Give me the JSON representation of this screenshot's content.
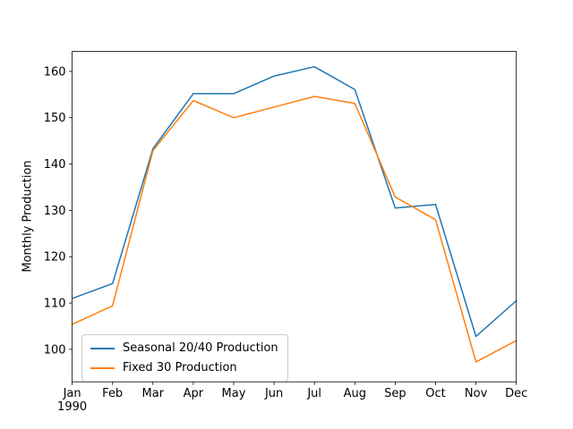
{
  "figure": {
    "background": "#ffffff"
  },
  "chart_data": {
    "type": "line",
    "title": "",
    "xlabel": "",
    "ylabel": "Monthly Production",
    "x_tick_labels": [
      "Jan",
      "Feb",
      "Mar",
      "Apr",
      "May",
      "Jun",
      "Jul",
      "Aug",
      "Sep",
      "Oct",
      "Nov",
      "Dec"
    ],
    "x_secondary_label": "1990",
    "y_ticks": [
      100,
      110,
      120,
      130,
      140,
      150,
      160
    ],
    "ylim": [
      93.0,
      164.3
    ],
    "grid": false,
    "legend_position": "lower left",
    "axis_color": "#000000",
    "series": [
      {
        "name": "Seasonal 20/40 Production",
        "color": "#1f77b4",
        "values": [
          111.0,
          114.2,
          143.3,
          155.2,
          155.2,
          159.0,
          161.0,
          156.1,
          130.5,
          131.3,
          102.8,
          110.5
        ]
      },
      {
        "name": "Fixed 30 Production",
        "color": "#ff7f0e",
        "values": [
          105.4,
          109.4,
          142.9,
          153.7,
          150.0,
          152.3,
          154.6,
          153.1,
          132.9,
          128.0,
          97.3,
          101.9
        ]
      }
    ]
  }
}
